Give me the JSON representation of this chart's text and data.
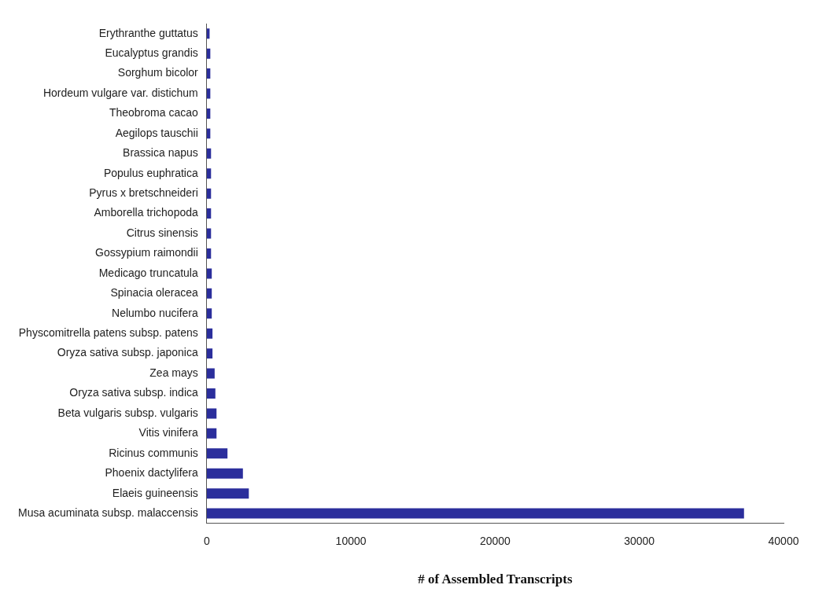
{
  "chart_data": {
    "type": "bar",
    "orientation": "horizontal",
    "xlabel": "# of Assembled Transcripts",
    "categories": [
      "Erythranthe guttatus",
      "Eucalyptus grandis",
      "Sorghum bicolor",
      "Hordeum vulgare var. distichum",
      "Theobroma cacao",
      "Aegilops tauschii",
      "Brassica napus",
      "Populus euphratica",
      "Pyrus x bretschneideri",
      "Amborella trichopoda",
      "Citrus sinensis",
      "Gossypium raimondii",
      "Medicago truncatula",
      "Spinacia oleracea",
      "Nelumbo nucifera",
      "Physcomitrella patens subsp. patens",
      "Oryza sativa subsp. japonica",
      "Zea mays",
      "Oryza sativa subsp. indica",
      "Beta vulgaris subsp. vulgaris",
      "Vitis vinifera",
      "Ricinus communis",
      "Phoenix dactylifera",
      "Elaeis guineensis",
      "Musa acuminata subsp. malaccensis"
    ],
    "values": [
      200,
      250,
      250,
      250,
      250,
      250,
      300,
      300,
      300,
      300,
      300,
      300,
      350,
      350,
      350,
      400,
      400,
      550,
      600,
      680,
      680,
      1440,
      2510,
      2920,
      37260
    ],
    "color": "#2b2e9c",
    "xlim": [
      0,
      40000
    ],
    "xticks": [
      0,
      10000,
      20000,
      30000,
      40000
    ],
    "grid": false,
    "legend": false
  }
}
